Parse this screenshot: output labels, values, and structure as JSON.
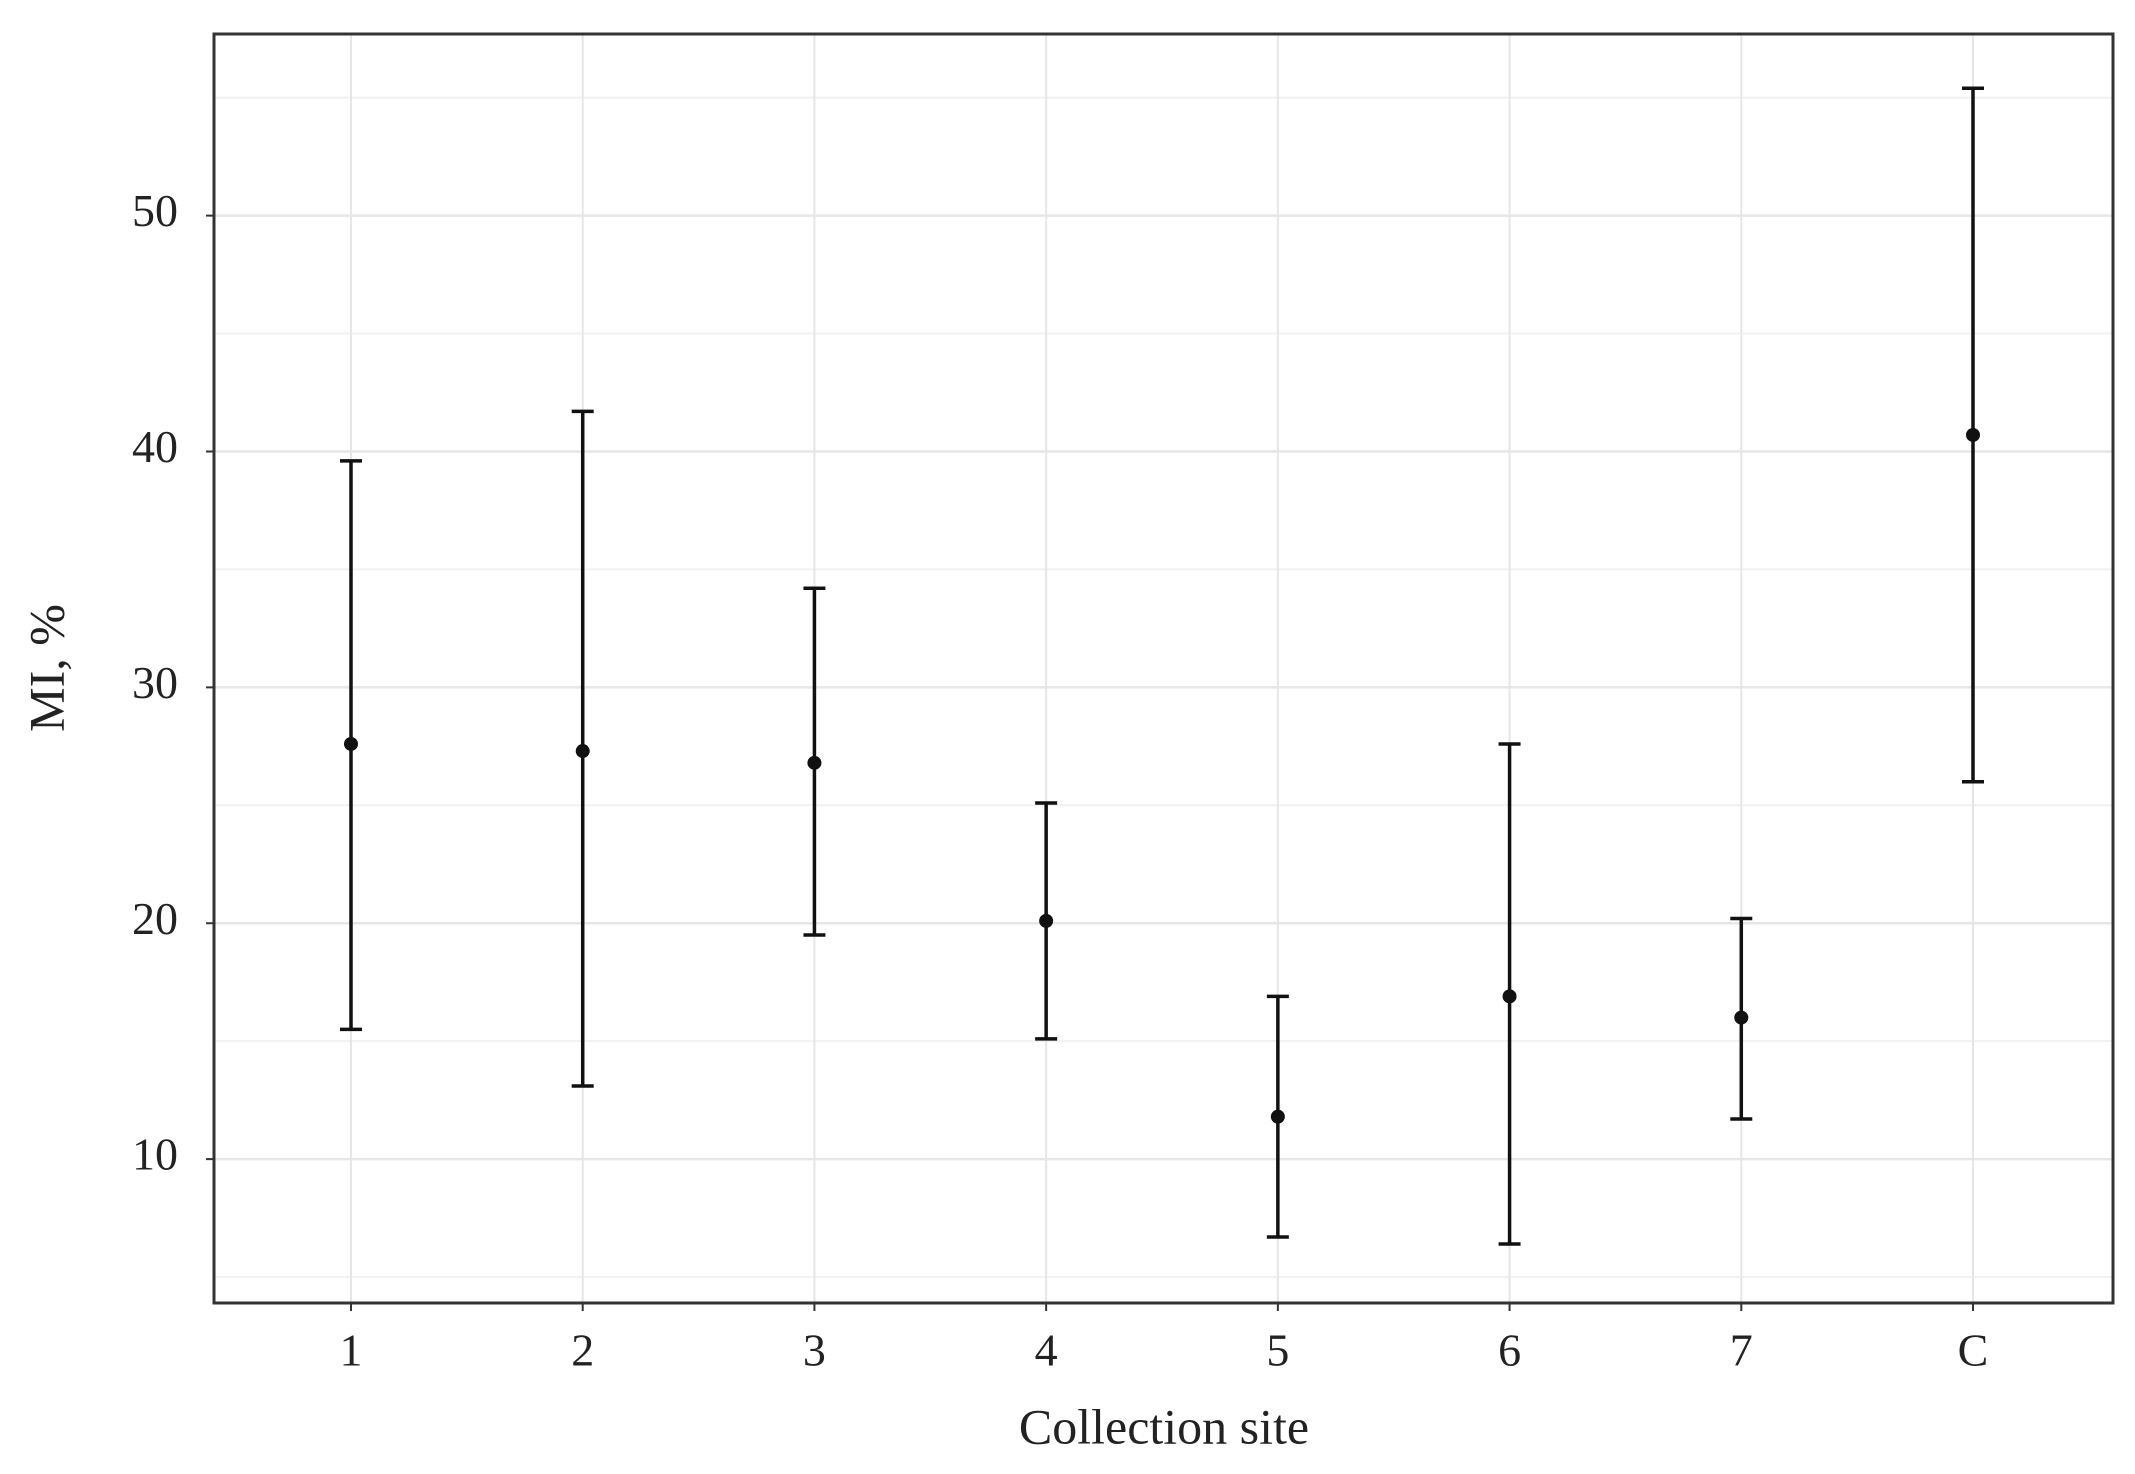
{
  "chart_data": {
    "type": "errorbar",
    "xlabel": "Collection site",
    "ylabel": "MI, %",
    "categories": [
      "1",
      "2",
      "3",
      "4",
      "5",
      "6",
      "7",
      "C"
    ],
    "values": [
      27.6,
      27.3,
      26.8,
      20.1,
      11.8,
      16.9,
      16.0,
      40.7
    ],
    "upper": [
      39.6,
      41.7,
      34.2,
      25.1,
      16.9,
      27.6,
      20.2,
      55.4
    ],
    "lower": [
      15.5,
      13.1,
      19.5,
      15.1,
      6.7,
      6.4,
      11.7,
      26.0
    ],
    "color": "#111111",
    "ylim": [
      3.9,
      57.7
    ],
    "yticks": [
      10,
      20,
      30,
      40,
      50
    ],
    "yminor": [
      5,
      15,
      25,
      35,
      45,
      55
    ],
    "grid": true
  }
}
